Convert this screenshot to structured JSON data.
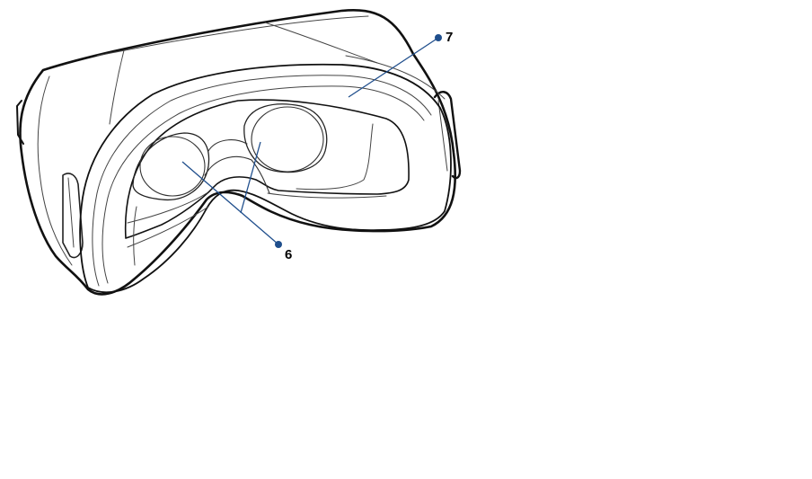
{
  "figure": {
    "description_free": true,
    "callouts": [
      {
        "id": "facial-cushion",
        "label": "7"
      },
      {
        "id": "lenses",
        "label": "6"
      }
    ]
  },
  "colors": {
    "outline": "#111111",
    "inner_line": "#444444",
    "callout_line": "#1f4e8c",
    "callout_dot": "#1f4e8c",
    "background": "#ffffff"
  }
}
